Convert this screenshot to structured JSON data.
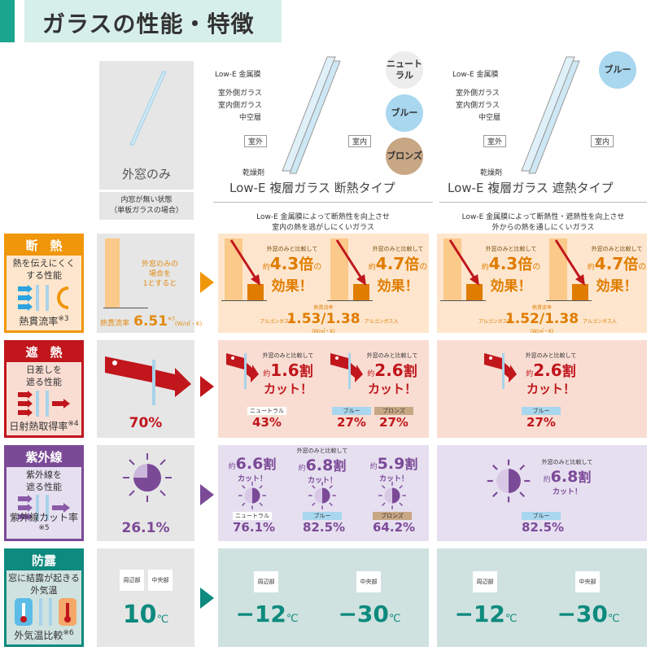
{
  "title": "ガラスの性能・特徴",
  "columns": {
    "single": {
      "name": "外窓のみ",
      "note_1": "内窓が無い状態",
      "note_2": "（単板ガラスの場合）"
    },
    "insulation": {
      "name": "Low-E 複層ガラス 断熱タイプ",
      "desc_1": "Low-E 金属膜によって断熱性を向上させ",
      "desc_2": "室内の熱を逃がしにくいガラス",
      "color_options": [
        "ニュートラル",
        "ブルー",
        "ブロンズ"
      ]
    },
    "shield": {
      "name": "Low-E 複層ガラス 遮熱タイプ",
      "desc_1": "Low-E 金属膜によって断熱性・遮熱性を向上させ",
      "desc_2": "外からの熱を通しにくいガラス",
      "color_options": [
        "ブルー"
      ]
    }
  },
  "diagram_labels": {
    "lowe": "Low-E 金属膜",
    "outer_glass": "室外側ガラス",
    "inner_glass": "室内側ガラス",
    "hollow": "中空層",
    "outdoor": "室外",
    "indoor": "室内",
    "desiccant": "乾燥剤"
  },
  "categories": [
    {
      "title": "断　熱",
      "desc_1": "熱を伝えにくく",
      "desc_2": "する性能",
      "footer": "熱貫流率",
      "note": "※3",
      "color": "#f0960a",
      "bg": "#fde6cd"
    },
    {
      "title": "遮　熱",
      "desc_1": "日差しを",
      "desc_2": "遮る性能",
      "footer": "日射熱取得率",
      "note": "※4",
      "color": "#c0161c",
      "bg": "#f9ddd3"
    },
    {
      "title": "紫外線",
      "desc_1": "紫外線を",
      "desc_2": "遮る性能",
      "footer": "紫外線カット率",
      "note": "※5",
      "color": "#7b4a97",
      "bg": "#e6dff0"
    },
    {
      "title": "防露",
      "desc_1": "窓に結露が起きる",
      "desc_2": "外気温",
      "footer": "外気温比較",
      "note": "※6",
      "color": "#0e8a7e",
      "bg": "#cfe2df"
    }
  ],
  "insulation_row": {
    "single_note_1": "外窓のみの",
    "single_note_2": "場合を",
    "single_note_3": "1とすると",
    "single_label": "熱貫流率",
    "single_value": "6.51",
    "single_note": "※3",
    "unit": "(W/㎡・K)",
    "compare": "外窓のみと比較して",
    "approx": "約",
    "times": "倍",
    "no": "の",
    "effect": "効果！",
    "lowe_insulation": {
      "v1": "4.3",
      "v2": "4.7",
      "label": "熱貫流率",
      "gas_none": "アルゴンガス無",
      "value": "1.53/1.38",
      "gas_in": "アルゴンガス入"
    },
    "lowe_shield": {
      "v1": "4.3",
      "v2": "4.7",
      "label": "熱貫流率",
      "gas_none": "アルゴンガス無",
      "value": "1.52/1.38",
      "gas_in": "アルゴンガス入"
    }
  },
  "shield_row": {
    "single_value": "70%",
    "compare": "外窓のみと比較して",
    "approx": "約",
    "cut": "カット！",
    "wari": "割",
    "insulation": {
      "v1": "1.6",
      "v2": "2.6",
      "tags": [
        "ニュートラル",
        "ブルー",
        "ブロンズ"
      ],
      "values": [
        "43%",
        "27%",
        "27%"
      ]
    },
    "shield": {
      "v1": "2.6",
      "tag": "ブルー",
      "value": "27%"
    }
  },
  "uv_row": {
    "single_value": "26.1%",
    "compare": "外窓のみと比較して",
    "approx": "約",
    "wari": "割",
    "cut": "カット！",
    "insulation": {
      "v": [
        "6.6",
        "6.8",
        "5.9"
      ],
      "tags": [
        "ニュートラル",
        "ブルー",
        "ブロンズ"
      ],
      "values": [
        "76.1%",
        "82.5%",
        "64.2%"
      ]
    },
    "shield": {
      "v": "6.8",
      "tag": "ブルー",
      "value": "82.5%"
    }
  },
  "dew_row": {
    "edge": "周辺部",
    "center": "中央部",
    "unit": "℃",
    "single_value": "10",
    "insulation": {
      "edge_value": "−12",
      "center_value": "−30"
    },
    "shield": {
      "edge_value": "−12",
      "center_value": "−30"
    }
  }
}
